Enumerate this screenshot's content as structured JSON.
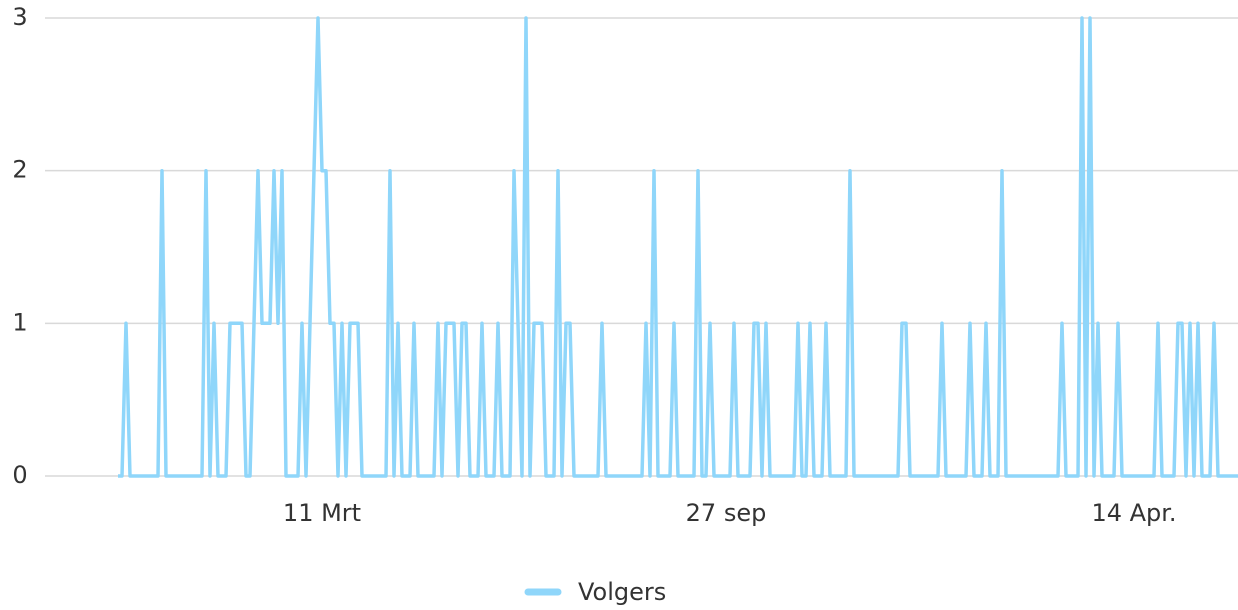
{
  "chart_data": {
    "type": "line",
    "categories": [
      null,
      null,
      null,
      null,
      null,
      null,
      null,
      null,
      null,
      null,
      null,
      null,
      null,
      null,
      null,
      null,
      null,
      null,
      null,
      null,
      null,
      null,
      null,
      null,
      null,
      null,
      null,
      null,
      null,
      null,
      null,
      null,
      null,
      null,
      null,
      null,
      null,
      null,
      null,
      null,
      null,
      null,
      null,
      null,
      null,
      null,
      null,
      null,
      null,
      null,
      null,
      "11 Mrt",
      null,
      null,
      null,
      null,
      null,
      null,
      null,
      null,
      null,
      null,
      null,
      null,
      null,
      null,
      null,
      null,
      null,
      null,
      null,
      null,
      null,
      null,
      null,
      null,
      null,
      null,
      null,
      null,
      null,
      null,
      null,
      null,
      null,
      null,
      null,
      null,
      null,
      null,
      null,
      null,
      null,
      null,
      null,
      null,
      null,
      null,
      null,
      null,
      null,
      null,
      null,
      null,
      null,
      null,
      null,
      null,
      null,
      null,
      null,
      null,
      null,
      null,
      null,
      null,
      null,
      null,
      null,
      null,
      null,
      null,
      null,
      null,
      null,
      null,
      null,
      null,
      null,
      null,
      null,
      null,
      null,
      null,
      null,
      null,
      null,
      null,
      null,
      null,
      null,
      null,
      null,
      null,
      null,
      null,
      null,
      null,
      null,
      null,
      null,
      null,
      "27 sep",
      null,
      null,
      null,
      null,
      null,
      null,
      null,
      null,
      null,
      null,
      null,
      null,
      null,
      null,
      null,
      null,
      null,
      null,
      null,
      null,
      null,
      null,
      null,
      null,
      null,
      null,
      null,
      null,
      null,
      null,
      null,
      null,
      null,
      null,
      null,
      null,
      null,
      null,
      null,
      null,
      null,
      null,
      null,
      null,
      null,
      null,
      null,
      null,
      null,
      null,
      null,
      null,
      null,
      null,
      null,
      null,
      null,
      null,
      null,
      null,
      null,
      null,
      null,
      null,
      null,
      null,
      null,
      null,
      null,
      null,
      null,
      null,
      null,
      null,
      null,
      null,
      null,
      null,
      null,
      null,
      null,
      null,
      null,
      null,
      null,
      null,
      null,
      null,
      null,
      null,
      null,
      null,
      null,
      null,
      null,
      null,
      null,
      null,
      null,
      null,
      null,
      "14 Apr.",
      null,
      null,
      null,
      null,
      null,
      null,
      null,
      null,
      null,
      null,
      null,
      null,
      null,
      null,
      null,
      null,
      null,
      null,
      null,
      null,
      null,
      null,
      null,
      null,
      null,
      null
    ],
    "series": [
      {
        "name": "Volgers",
        "color": "#8fd6fa",
        "values": [
          0,
          0,
          1,
          0,
          0,
          0,
          0,
          0,
          0,
          0,
          0,
          2,
          0,
          0,
          0,
          0,
          0,
          0,
          0,
          0,
          0,
          0,
          2,
          0,
          1,
          0,
          0,
          0,
          1,
          1,
          1,
          1,
          0,
          0,
          1,
          2,
          1,
          1,
          1,
          2,
          1,
          2,
          0,
          0,
          0,
          0,
          1,
          0,
          1,
          2,
          3,
          2,
          2,
          1,
          1,
          0,
          1,
          0,
          1,
          1,
          1,
          0,
          0,
          0,
          0,
          0,
          0,
          0,
          2,
          0,
          1,
          0,
          0,
          0,
          1,
          0,
          0,
          0,
          0,
          0,
          1,
          0,
          1,
          1,
          1,
          0,
          1,
          1,
          0,
          0,
          0,
          1,
          0,
          0,
          0,
          1,
          0,
          0,
          0,
          2,
          1,
          0,
          3,
          0,
          1,
          1,
          1,
          0,
          0,
          0,
          2,
          0,
          1,
          1,
          0,
          0,
          0,
          0,
          0,
          0,
          0,
          1,
          0,
          0,
          0,
          0,
          0,
          0,
          0,
          0,
          0,
          0,
          1,
          0,
          2,
          0,
          0,
          0,
          0,
          1,
          0,
          0,
          0,
          0,
          0,
          2,
          0,
          0,
          1,
          0,
          0,
          0,
          0,
          0,
          1,
          0,
          0,
          0,
          0,
          1,
          1,
          0,
          1,
          0,
          0,
          0,
          0,
          0,
          0,
          0,
          1,
          0,
          0,
          1,
          0,
          0,
          0,
          1,
          0,
          0,
          0,
          0,
          0,
          2,
          0,
          0,
          0,
          0,
          0,
          0,
          0,
          0,
          0,
          0,
          0,
          0,
          1,
          1,
          0,
          0,
          0,
          0,
          0,
          0,
          0,
          0,
          1,
          0,
          0,
          0,
          0,
          0,
          0,
          1,
          0,
          0,
          0,
          1,
          0,
          0,
          0,
          2,
          0,
          0,
          0,
          0,
          0,
          0,
          0,
          0,
          0,
          0,
          0,
          0,
          0,
          0,
          1,
          0,
          0,
          0,
          0,
          3,
          0,
          3,
          0,
          1,
          0,
          0,
          0,
          0,
          1,
          0,
          0,
          0,
          0,
          0,
          0,
          0,
          0,
          0,
          1,
          0,
          0,
          0,
          0,
          1,
          1,
          0,
          1,
          0,
          1,
          0,
          0,
          0,
          1,
          0,
          0,
          0,
          0,
          0,
          0
        ]
      }
    ],
    "ylim": [
      0,
      3
    ],
    "yticks": [
      0,
      1,
      2,
      3
    ],
    "grid": true,
    "legend": "bottom"
  }
}
